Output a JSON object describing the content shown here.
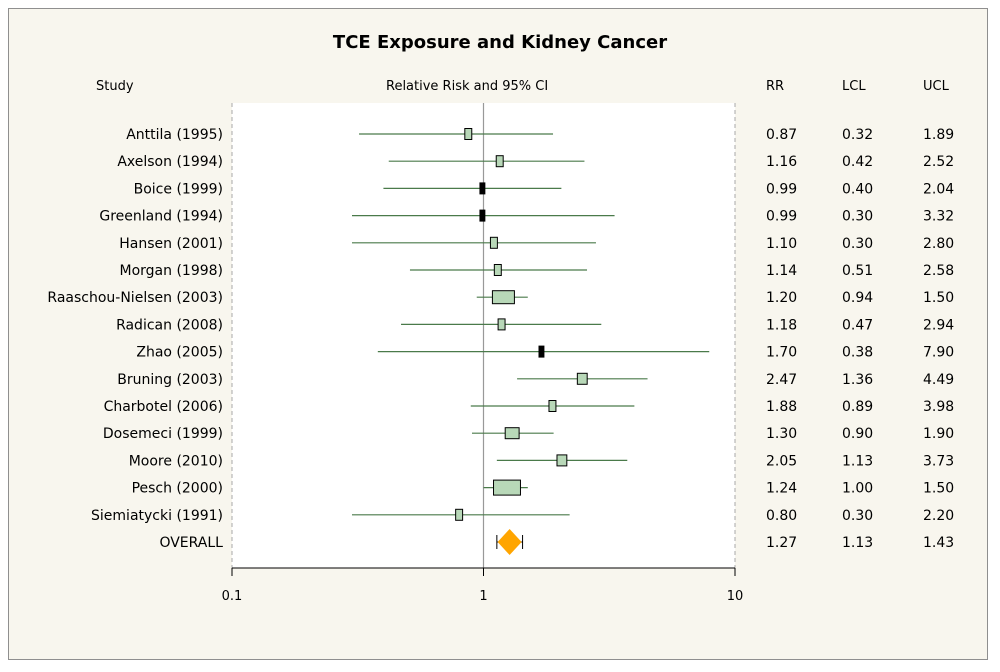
{
  "chart_data": {
    "type": "forest",
    "title": "TCE Exposure and Kidney Cancer",
    "headers": {
      "study": "Study",
      "plot": "Relative Risk and 95% CI",
      "rr": "RR",
      "lcl": "LCL",
      "ucl": "UCL"
    },
    "xscale": "log",
    "xlim": [
      0.1,
      10
    ],
    "xticks": [
      "0.1",
      "1",
      "10"
    ],
    "reference_line": 1,
    "studies": [
      {
        "label": "Anttila (1995)",
        "rr": "0.87",
        "lcl": "0.32",
        "ucl": "1.89",
        "weight": 0.1
      },
      {
        "label": "Axelson (1994)",
        "rr": "1.16",
        "lcl": "0.42",
        "ucl": "2.52",
        "weight": 0.1
      },
      {
        "label": "Boice (1999)",
        "rr": "0.99",
        "lcl": "0.40",
        "ucl": "2.04",
        "weight": 0.05
      },
      {
        "label": "Greenland (1994)",
        "rr": "0.99",
        "lcl": "0.30",
        "ucl": "3.32",
        "weight": 0.05
      },
      {
        "label": "Hansen (2001)",
        "rr": "1.10",
        "lcl": "0.30",
        "ucl": "2.80",
        "weight": 0.1
      },
      {
        "label": "Morgan (1998)",
        "rr": "1.14",
        "lcl": "0.51",
        "ucl": "2.58",
        "weight": 0.1
      },
      {
        "label": "Raaschou-Nielsen (2003)",
        "rr": "1.20",
        "lcl": "0.94",
        "ucl": "1.50",
        "weight": 1.0
      },
      {
        "label": "Radican (2008)",
        "rr": "1.18",
        "lcl": "0.47",
        "ucl": "2.94",
        "weight": 0.1
      },
      {
        "label": "Zhao (2005)",
        "rr": "1.70",
        "lcl": "0.38",
        "ucl": "7.90",
        "weight": 0.05
      },
      {
        "label": "Bruning (2003)",
        "rr": "2.47",
        "lcl": "1.36",
        "ucl": "4.49",
        "weight": 0.2
      },
      {
        "label": "Charbotel (2006)",
        "rr": "1.88",
        "lcl": "0.89",
        "ucl": "3.98",
        "weight": 0.1
      },
      {
        "label": "Dosemeci (1999)",
        "rr": "1.30",
        "lcl": "0.90",
        "ucl": "1.90",
        "weight": 0.4
      },
      {
        "label": "Moore (2010)",
        "rr": "2.05",
        "lcl": "1.13",
        "ucl": "3.73",
        "weight": 0.2
      },
      {
        "label": "Pesch (2000)",
        "rr": "1.24",
        "lcl": "1.00",
        "ucl": "1.50",
        "weight": 1.5
      },
      {
        "label": "Siemiatycki (1991)",
        "rr": "0.80",
        "lcl": "0.30",
        "ucl": "2.20",
        "weight": 0.1
      }
    ],
    "overall": {
      "label": "OVERALL",
      "rr": "1.27",
      "lcl": "1.13",
      "ucl": "1.43"
    },
    "colors": {
      "ci_line": "#4a7a4a",
      "box_fill": "#b8d8b8",
      "diamond": "#ffa500",
      "ref_line": "#999999",
      "background": "#f8f6ee"
    }
  }
}
